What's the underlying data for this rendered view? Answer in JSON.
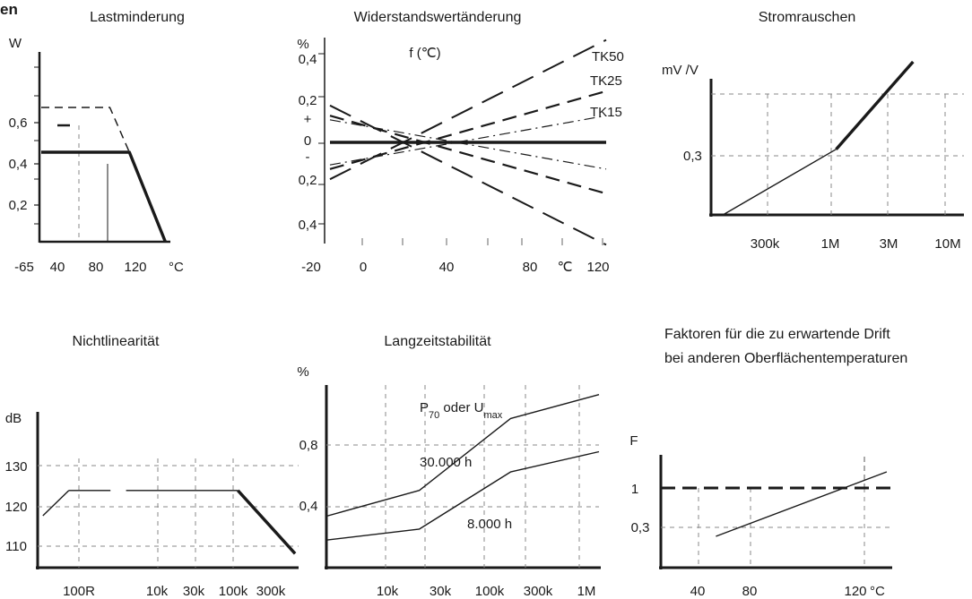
{
  "page": {
    "heading_fragment": "en"
  },
  "chart_data": [
    {
      "id": "lastminderung",
      "type": "line",
      "title": "Lastminderung",
      "ylabel": "W",
      "xunit": "°C",
      "x_ticks": [
        "-65",
        "40",
        "80",
        "120"
      ],
      "y_ticks": [
        "0,6",
        "0,4",
        "0,2"
      ],
      "xlim": [
        -65,
        130
      ],
      "ylim": [
        0,
        0.7
      ],
      "series": [
        {
          "style": "solid-heavy",
          "points": [
            [
              -65,
              0.4
            ],
            [
              70,
              0.4
            ],
            [
              125,
              0
            ]
          ]
        },
        {
          "style": "dashed",
          "points": [
            [
              -65,
              0.6
            ],
            [
              40,
              0.6
            ],
            [
              70,
              0.4
            ]
          ]
        }
      ]
    },
    {
      "id": "widerstand",
      "type": "line",
      "title": "Widerstandswertänderung",
      "ylabel": "%",
      "annotation": "f (℃)",
      "xunit": "℃",
      "x_ticks": [
        "-20",
        "0",
        "40",
        "80",
        "120"
      ],
      "y_ticks": [
        "0,4",
        "0,2",
        "+",
        "0",
        "-",
        "0,2",
        "0,4"
      ],
      "xlim": [
        -20,
        125
      ],
      "ylim": [
        -0.45,
        0.45
      ],
      "series": [
        {
          "name": "TK50",
          "style": "long-dash",
          "points": [
            [
              -15,
              0.18
            ],
            [
              125,
              -0.5
            ]
          ]
        },
        {
          "name": "TK50",
          "style": "long-dash",
          "points": [
            [
              -15,
              -0.18
            ],
            [
              125,
              0.5
            ]
          ]
        },
        {
          "name": "TK25",
          "style": "dash",
          "points": [
            [
              -15,
              0.13
            ],
            [
              125,
              -0.25
            ]
          ]
        },
        {
          "name": "TK25",
          "style": "dash",
          "points": [
            [
              -15,
              -0.13
            ],
            [
              125,
              0.25
            ]
          ]
        },
        {
          "name": "TK15",
          "style": "dash-dot",
          "points": [
            [
              -15,
              0.11
            ],
            [
              125,
              -0.13
            ]
          ]
        },
        {
          "name": "TK15",
          "style": "dash-dot",
          "points": [
            [
              -15,
              -0.11
            ],
            [
              125,
              0.13
            ]
          ]
        },
        {
          "name": "",
          "style": "solid-heavy",
          "points": [
            [
              -15,
              0
            ],
            [
              125,
              0
            ]
          ]
        }
      ],
      "series_labels": [
        "TK50",
        "TK25",
        "TK15"
      ]
    },
    {
      "id": "stromrauschen",
      "type": "line",
      "title": "Stromrauschen",
      "ylabel": "mV /V",
      "x_ticks": [
        "300k",
        "1M",
        "3M",
        "10M"
      ],
      "y_ticks": [
        "0,3"
      ],
      "xlim": [
        100000,
        10000000
      ],
      "xscale": "log",
      "ylim": [
        0,
        0.7
      ],
      "series": [
        {
          "style": "solid",
          "points": [
            [
              130000,
              0
            ],
            [
              1000000,
              0.3
            ]
          ]
        },
        {
          "style": "solid-heavy",
          "points": [
            [
              1000000,
              0.3
            ],
            [
              4000000,
              0.7
            ]
          ]
        }
      ]
    },
    {
      "id": "nichtlinearitaet",
      "type": "line",
      "title": "Nichtlinearität",
      "ylabel": "dB",
      "x_ticks": [
        "100R",
        "10k",
        "30k",
        "100k",
        "300k"
      ],
      "y_ticks": [
        "130",
        "120",
        "110"
      ],
      "ylim": [
        105,
        138
      ],
      "series": [
        {
          "style": "solid",
          "points": [
            [
              0.02,
              116.5
            ],
            [
              0.12,
              122.5
            ]
          ]
        },
        {
          "style": "solid",
          "points": [
            [
              0.12,
              122.5
            ],
            [
              0.28,
              122.5
            ]
          ]
        },
        {
          "style": "solid",
          "points": [
            [
              0.34,
              122.5
            ],
            [
              0.77,
              122.5
            ]
          ]
        },
        {
          "style": "solid-heavy",
          "points": [
            [
              0.77,
              122.5
            ],
            [
              0.99,
              107.5
            ]
          ]
        }
      ]
    },
    {
      "id": "langzeitstabilitaet",
      "type": "line",
      "title": "Langzeitstabilität",
      "ylabel": "%",
      "legend_main": "P",
      "legend_sub": "70",
      "legend_mid": " oder U",
      "legend_sub2": "max",
      "x_ticks": [
        "10k",
        "30k",
        "100k",
        "300k",
        "1M"
      ],
      "y_ticks": [
        "0,8",
        "0,4"
      ],
      "xlim": [
        3000,
        1500000
      ],
      "xscale": "log",
      "ylim": [
        0,
        1.05
      ],
      "series": [
        {
          "name": "30.000 h",
          "style": "solid",
          "points": [
            [
              3000,
              0.27
            ],
            [
              25000,
              0.41
            ],
            [
              200000,
              0.8
            ],
            [
              1500000,
              0.93
            ]
          ]
        },
        {
          "name": "8.000 h",
          "style": "solid",
          "points": [
            [
              3000,
              0.14
            ],
            [
              25000,
              0.2
            ],
            [
              200000,
              0.51
            ],
            [
              1500000,
              0.62
            ]
          ]
        }
      ]
    },
    {
      "id": "faktoren",
      "type": "line",
      "title": "Faktoren für die zu erwartende Drift",
      "subtitle": "bei anderen Oberflächentemperaturen",
      "ylabel": "F",
      "x_ticks": [
        "40",
        "80",
        "120"
      ],
      "xunit": "°C",
      "y_ticks": [
        "1",
        "0,3"
      ],
      "xlim": [
        10,
        135
      ],
      "series": [
        {
          "style": "dashed-heavy",
          "points": [
            [
              10,
              1
            ],
            [
              135,
              1
            ]
          ]
        },
        {
          "style": "solid",
          "points": [
            [
              40,
              0.1
            ],
            [
              133,
              1.3
            ]
          ]
        }
      ]
    }
  ]
}
